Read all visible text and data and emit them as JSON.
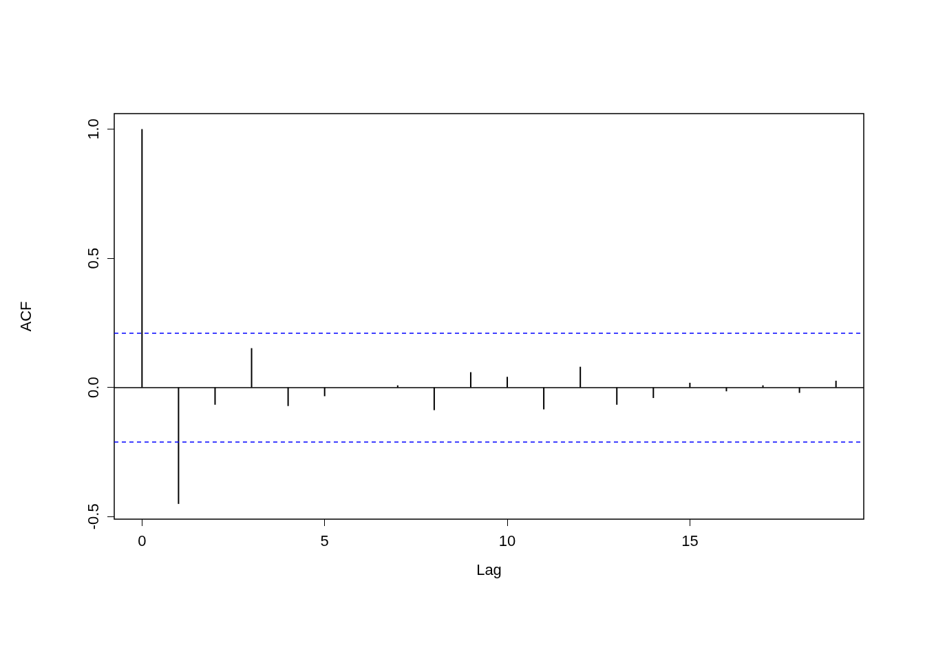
{
  "chart_data": {
    "type": "bar",
    "xlabel": "Lag",
    "ylabel": "ACF",
    "x": [
      0,
      1,
      2,
      3,
      4,
      5,
      6,
      7,
      8,
      9,
      10,
      11,
      12,
      13,
      14,
      15,
      16,
      17,
      18,
      19
    ],
    "series": [
      {
        "color": "#000000",
        "values": [
          1,
          -0.451,
          -0.067,
          0.152,
          -0.072,
          -0.034,
          null,
          0.008,
          -0.088,
          0.059,
          0.041,
          -0.085,
          0.08,
          -0.067,
          -0.041,
          0.018,
          -0.015,
          0.008,
          -0.021,
          0.026
        ]
      }
    ],
    "xlim": [
      -0.76,
      19.76
    ],
    "ylim": [
      -0.51,
      1.06
    ],
    "xticks": [
      0,
      5,
      10,
      15
    ],
    "yticks": [
      {
        "value": -0.5,
        "label": "-0.5"
      },
      {
        "value": 0,
        "label": "0.0"
      },
      {
        "value": 0.5,
        "label": "0.5"
      },
      {
        "value": 1,
        "label": "1.0"
      }
    ],
    "ref_lines": [
      {
        "axis": "y",
        "value": 0,
        "color": "#000000",
        "line_style": "solid"
      },
      {
        "axis": "y",
        "value": 0.21,
        "color": "#0000ff",
        "line_style": "dashed"
      },
      {
        "axis": "y",
        "value": -0.21,
        "color": "#0000ff",
        "line_style": "dashed"
      }
    ],
    "grid": false
  }
}
